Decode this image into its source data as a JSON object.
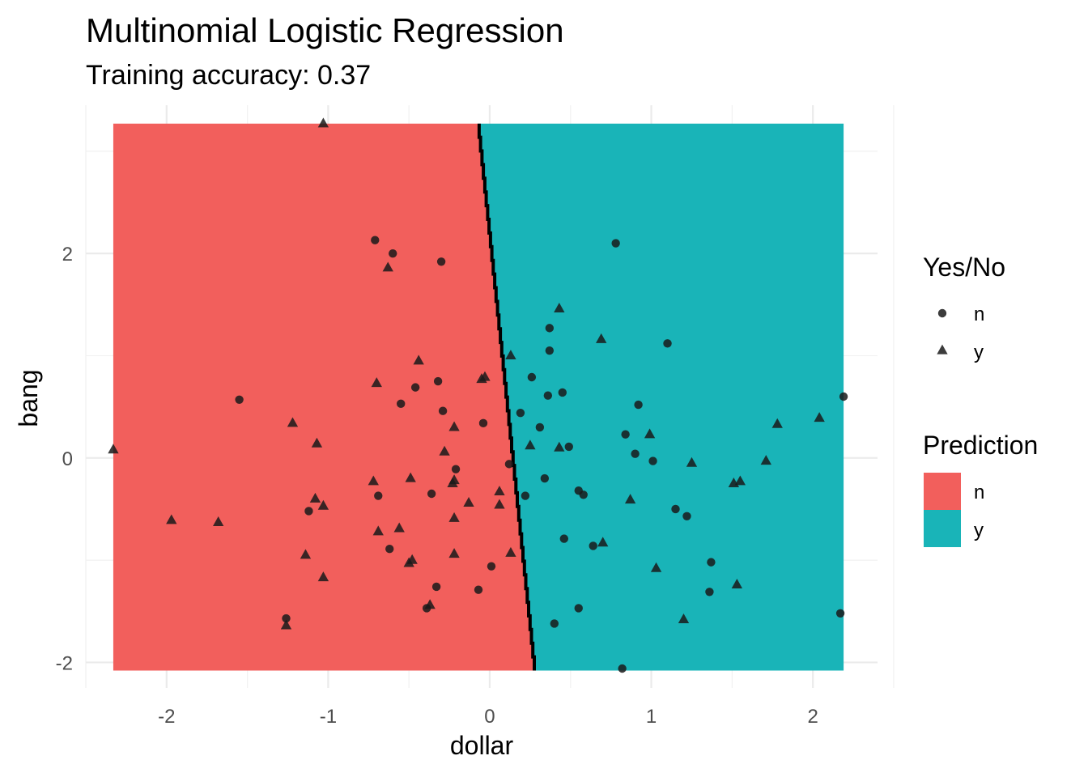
{
  "chart_data": {
    "type": "scatter",
    "title": "Multinomial Logistic Regression",
    "subtitle": "Training accuracy: 0.37",
    "xlabel": "dollar",
    "ylabel": "bang",
    "xlim": [
      -2.5,
      2.4
    ],
    "ylim": [
      -2.25,
      3.45
    ],
    "x_ticks": [
      -2,
      -1,
      0,
      1,
      2
    ],
    "y_ticks": [
      -2,
      0,
      2
    ],
    "grid": true,
    "region": {
      "x_range": [
        -2.33,
        2.19
      ],
      "y_range": [
        -2.08,
        3.27
      ],
      "boundary": [
        [
          -0.07,
          3.27
        ],
        [
          0.28,
          -2.08
        ]
      ],
      "left_class": "n",
      "right_class": "y"
    },
    "legends": {
      "shape": {
        "title": "Yes/No",
        "entries": [
          {
            "label": "n",
            "shape": "circle"
          },
          {
            "label": "y",
            "shape": "triangle"
          }
        ]
      },
      "fill": {
        "title": "Prediction",
        "entries": [
          {
            "label": "n",
            "color": "#F25F5C"
          },
          {
            "label": "y",
            "color": "#19B4B8"
          }
        ]
      },
      "placement": "right"
    },
    "colors": {
      "n": "#F25F5C",
      "y": "#19B4B8",
      "points": "#1a1a1a",
      "boundary": "#000000"
    },
    "series": [
      {
        "name": "n",
        "shape": "circle",
        "points": [
          [
            -1.55,
            0.57
          ],
          [
            -0.71,
            2.13
          ],
          [
            -0.6,
            2.0
          ],
          [
            -0.3,
            1.92
          ],
          [
            -0.32,
            0.75
          ],
          [
            -0.46,
            0.69
          ],
          [
            -0.55,
            0.53
          ],
          [
            -0.29,
            0.46
          ],
          [
            -0.04,
            0.34
          ],
          [
            -0.21,
            -0.11
          ],
          [
            -0.69,
            -0.37
          ],
          [
            -0.36,
            -0.35
          ],
          [
            -1.12,
            -0.52
          ],
          [
            -0.62,
            -0.89
          ],
          [
            -0.33,
            -1.26
          ],
          [
            -0.39,
            -1.47
          ],
          [
            -1.26,
            -1.57
          ],
          [
            -0.07,
            -1.29
          ],
          [
            0.01,
            -1.06
          ],
          [
            0.12,
            -0.06
          ],
          [
            0.19,
            0.44
          ],
          [
            0.26,
            0.79
          ],
          [
            0.37,
            1.27
          ],
          [
            0.37,
            1.05
          ],
          [
            0.36,
            0.61
          ],
          [
            0.45,
            0.64
          ],
          [
            0.31,
            0.3
          ],
          [
            0.49,
            0.11
          ],
          [
            0.22,
            -0.37
          ],
          [
            0.34,
            -0.2
          ],
          [
            0.55,
            -0.32
          ],
          [
            0.58,
            -0.36
          ],
          [
            0.46,
            -0.79
          ],
          [
            0.64,
            -0.86
          ],
          [
            0.4,
            -1.62
          ],
          [
            0.55,
            -1.47
          ],
          [
            0.78,
            2.1
          ],
          [
            0.92,
            0.52
          ],
          [
            0.84,
            0.23
          ],
          [
            0.9,
            0.04
          ],
          [
            1.01,
            -0.03
          ],
          [
            1.1,
            1.12
          ],
          [
            1.15,
            -0.5
          ],
          [
            1.22,
            -0.57
          ],
          [
            1.37,
            -1.02
          ],
          [
            1.36,
            -1.31
          ],
          [
            0.82,
            -2.06
          ],
          [
            2.17,
            -1.52
          ],
          [
            2.19,
            0.6
          ]
        ]
      },
      {
        "name": "y",
        "shape": "triangle",
        "points": [
          [
            -1.03,
            3.27
          ],
          [
            -0.63,
            1.86
          ],
          [
            -0.44,
            0.95
          ],
          [
            -0.7,
            0.73
          ],
          [
            -0.05,
            0.77
          ],
          [
            -0.03,
            0.79
          ],
          [
            -1.22,
            0.34
          ],
          [
            -1.07,
            0.14
          ],
          [
            -0.22,
            0.3
          ],
          [
            -0.28,
            0.06
          ],
          [
            -2.33,
            0.08
          ],
          [
            -1.97,
            -0.61
          ],
          [
            -1.68,
            -0.63
          ],
          [
            -1.08,
            -0.4
          ],
          [
            -1.03,
            -0.47
          ],
          [
            -0.72,
            -0.23
          ],
          [
            -0.49,
            -0.2
          ],
          [
            -0.22,
            -0.22
          ],
          [
            -0.23,
            -0.25
          ],
          [
            -0.13,
            -0.44
          ],
          [
            -0.22,
            -0.59
          ],
          [
            -0.69,
            -0.72
          ],
          [
            -0.56,
            -0.69
          ],
          [
            -1.14,
            -0.95
          ],
          [
            -1.03,
            -1.17
          ],
          [
            -0.5,
            -1.03
          ],
          [
            -0.48,
            -1.0
          ],
          [
            -0.22,
            -0.94
          ],
          [
            -0.37,
            -1.44
          ],
          [
            -1.26,
            -1.64
          ],
          [
            0.06,
            -0.33
          ],
          [
            0.06,
            -0.46
          ],
          [
            0.13,
            -0.93
          ],
          [
            0.13,
            1.0
          ],
          [
            0.25,
            0.12
          ],
          [
            0.43,
            1.46
          ],
          [
            0.43,
            0.1
          ],
          [
            0.69,
            1.16
          ],
          [
            0.7,
            -0.83
          ],
          [
            0.87,
            -0.41
          ],
          [
            0.99,
            0.23
          ],
          [
            1.03,
            -1.08
          ],
          [
            1.25,
            -0.05
          ],
          [
            1.2,
            -1.58
          ],
          [
            1.51,
            -0.25
          ],
          [
            1.55,
            -0.23
          ],
          [
            1.53,
            -1.24
          ],
          [
            1.71,
            -0.03
          ],
          [
            1.78,
            0.33
          ],
          [
            2.04,
            0.39
          ]
        ]
      }
    ]
  }
}
